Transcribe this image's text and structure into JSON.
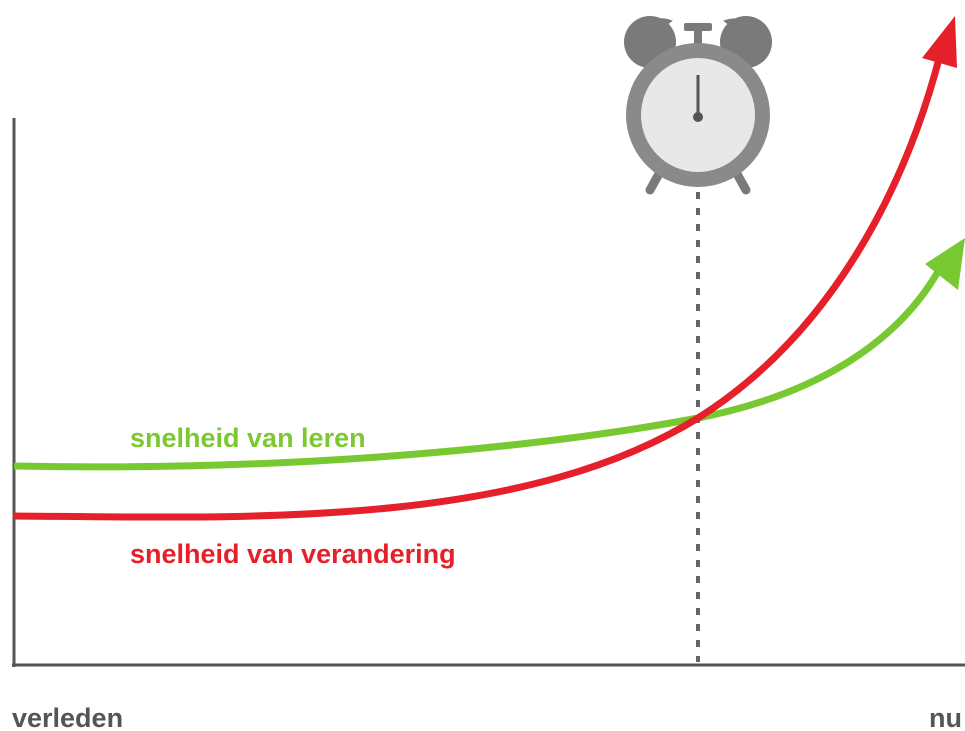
{
  "labels": {
    "learning": "snelheid van leren",
    "change": "snelheid van verandering"
  },
  "axis": {
    "start": "verleden",
    "end": "nu"
  }
}
